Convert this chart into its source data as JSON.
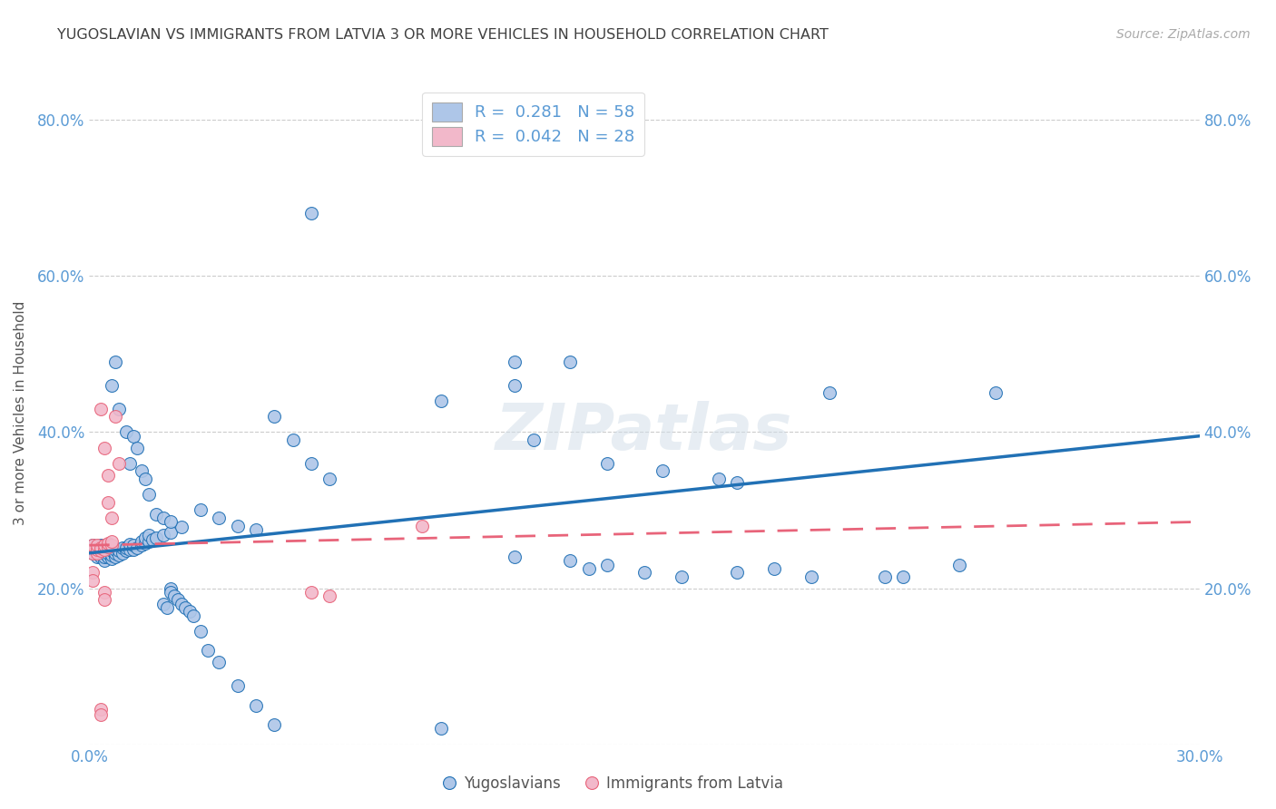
{
  "title": "YUGOSLAVIAN VS IMMIGRANTS FROM LATVIA 3 OR MORE VEHICLES IN HOUSEHOLD CORRELATION CHART",
  "source": "Source: ZipAtlas.com",
  "ylabel": "3 or more Vehicles in Household",
  "xmin": 0.0,
  "xmax": 0.3,
  "ymin": 0.0,
  "ymax": 0.85,
  "yticks": [
    0.0,
    0.2,
    0.4,
    0.6,
    0.8
  ],
  "ytick_labels": [
    "",
    "20.0%",
    "40.0%",
    "60.0%",
    "80.0%"
  ],
  "xticks": [
    0.0,
    0.05,
    0.1,
    0.15,
    0.2,
    0.25,
    0.3
  ],
  "xtick_labels": [
    "0.0%",
    "",
    "",
    "",
    "",
    "",
    "30.0%"
  ],
  "blue_color": "#aec6e8",
  "pink_color": "#f2b8ca",
  "blue_line_color": "#2171b5",
  "pink_line_color": "#e8647a",
  "axis_color": "#5b9bd5",
  "watermark": "ZIPatlas",
  "blue_scatter": [
    [
      0.001,
      0.245
    ],
    [
      0.001,
      0.255
    ],
    [
      0.002,
      0.24
    ],
    [
      0.002,
      0.25
    ],
    [
      0.003,
      0.24
    ],
    [
      0.003,
      0.245
    ],
    [
      0.003,
      0.25
    ],
    [
      0.003,
      0.255
    ],
    [
      0.004,
      0.235
    ],
    [
      0.004,
      0.24
    ],
    [
      0.004,
      0.245
    ],
    [
      0.004,
      0.25
    ],
    [
      0.005,
      0.24
    ],
    [
      0.005,
      0.245
    ],
    [
      0.005,
      0.25
    ],
    [
      0.005,
      0.255
    ],
    [
      0.006,
      0.238
    ],
    [
      0.006,
      0.243
    ],
    [
      0.006,
      0.248
    ],
    [
      0.007,
      0.24
    ],
    [
      0.007,
      0.245
    ],
    [
      0.007,
      0.25
    ],
    [
      0.008,
      0.242
    ],
    [
      0.008,
      0.248
    ],
    [
      0.009,
      0.245
    ],
    [
      0.009,
      0.252
    ],
    [
      0.01,
      0.248
    ],
    [
      0.01,
      0.252
    ],
    [
      0.011,
      0.25
    ],
    [
      0.011,
      0.256
    ],
    [
      0.012,
      0.25
    ],
    [
      0.012,
      0.255
    ],
    [
      0.013,
      0.252
    ],
    [
      0.014,
      0.255
    ],
    [
      0.014,
      0.26
    ],
    [
      0.015,
      0.258
    ],
    [
      0.015,
      0.265
    ],
    [
      0.016,
      0.26
    ],
    [
      0.016,
      0.268
    ],
    [
      0.017,
      0.262
    ],
    [
      0.018,
      0.265
    ],
    [
      0.02,
      0.268
    ],
    [
      0.022,
      0.272
    ],
    [
      0.025,
      0.278
    ],
    [
      0.006,
      0.46
    ],
    [
      0.007,
      0.49
    ],
    [
      0.008,
      0.43
    ],
    [
      0.01,
      0.4
    ],
    [
      0.011,
      0.36
    ],
    [
      0.012,
      0.395
    ],
    [
      0.013,
      0.38
    ],
    [
      0.014,
      0.35
    ],
    [
      0.015,
      0.34
    ],
    [
      0.016,
      0.32
    ],
    [
      0.05,
      0.42
    ],
    [
      0.055,
      0.39
    ],
    [
      0.06,
      0.36
    ],
    [
      0.065,
      0.34
    ],
    [
      0.095,
      0.44
    ],
    [
      0.12,
      0.39
    ],
    [
      0.14,
      0.36
    ],
    [
      0.155,
      0.35
    ],
    [
      0.17,
      0.34
    ],
    [
      0.175,
      0.335
    ],
    [
      0.06,
      0.68
    ],
    [
      0.115,
      0.46
    ],
    [
      0.115,
      0.49
    ],
    [
      0.13,
      0.49
    ],
    [
      0.2,
      0.45
    ],
    [
      0.245,
      0.45
    ],
    [
      0.115,
      0.24
    ],
    [
      0.13,
      0.235
    ],
    [
      0.14,
      0.23
    ],
    [
      0.135,
      0.225
    ],
    [
      0.15,
      0.22
    ],
    [
      0.16,
      0.215
    ],
    [
      0.175,
      0.22
    ],
    [
      0.185,
      0.225
    ],
    [
      0.195,
      0.215
    ],
    [
      0.215,
      0.215
    ],
    [
      0.22,
      0.215
    ],
    [
      0.235,
      0.23
    ],
    [
      0.02,
      0.18
    ],
    [
      0.021,
      0.175
    ],
    [
      0.022,
      0.2
    ],
    [
      0.022,
      0.195
    ],
    [
      0.023,
      0.19
    ],
    [
      0.024,
      0.185
    ],
    [
      0.025,
      0.18
    ],
    [
      0.026,
      0.175
    ],
    [
      0.027,
      0.17
    ],
    [
      0.028,
      0.165
    ],
    [
      0.03,
      0.145
    ],
    [
      0.032,
      0.12
    ],
    [
      0.035,
      0.105
    ],
    [
      0.04,
      0.075
    ],
    [
      0.045,
      0.05
    ],
    [
      0.05,
      0.025
    ],
    [
      0.095,
      0.02
    ],
    [
      0.03,
      0.3
    ],
    [
      0.035,
      0.29
    ],
    [
      0.04,
      0.28
    ],
    [
      0.045,
      0.275
    ],
    [
      0.018,
      0.295
    ],
    [
      0.02,
      0.29
    ],
    [
      0.022,
      0.285
    ]
  ],
  "pink_scatter": [
    [
      0.001,
      0.25
    ],
    [
      0.001,
      0.245
    ],
    [
      0.001,
      0.255
    ],
    [
      0.002,
      0.245
    ],
    [
      0.002,
      0.25
    ],
    [
      0.002,
      0.255
    ],
    [
      0.003,
      0.248
    ],
    [
      0.003,
      0.252
    ],
    [
      0.004,
      0.25
    ],
    [
      0.004,
      0.255
    ],
    [
      0.005,
      0.253
    ],
    [
      0.005,
      0.258
    ],
    [
      0.006,
      0.255
    ],
    [
      0.006,
      0.26
    ],
    [
      0.003,
      0.43
    ],
    [
      0.004,
      0.38
    ],
    [
      0.005,
      0.345
    ],
    [
      0.005,
      0.31
    ],
    [
      0.006,
      0.29
    ],
    [
      0.007,
      0.42
    ],
    [
      0.008,
      0.36
    ],
    [
      0.003,
      0.045
    ],
    [
      0.003,
      0.038
    ],
    [
      0.004,
      0.195
    ],
    [
      0.004,
      0.185
    ],
    [
      0.001,
      0.22
    ],
    [
      0.001,
      0.21
    ],
    [
      0.06,
      0.195
    ],
    [
      0.065,
      0.19
    ],
    [
      0.09,
      0.28
    ]
  ],
  "blue_trend_x": [
    0.0,
    0.3
  ],
  "blue_trend_y": [
    0.245,
    0.395
  ],
  "pink_trend_x": [
    0.0,
    0.3
  ],
  "pink_trend_y": [
    0.255,
    0.285
  ]
}
